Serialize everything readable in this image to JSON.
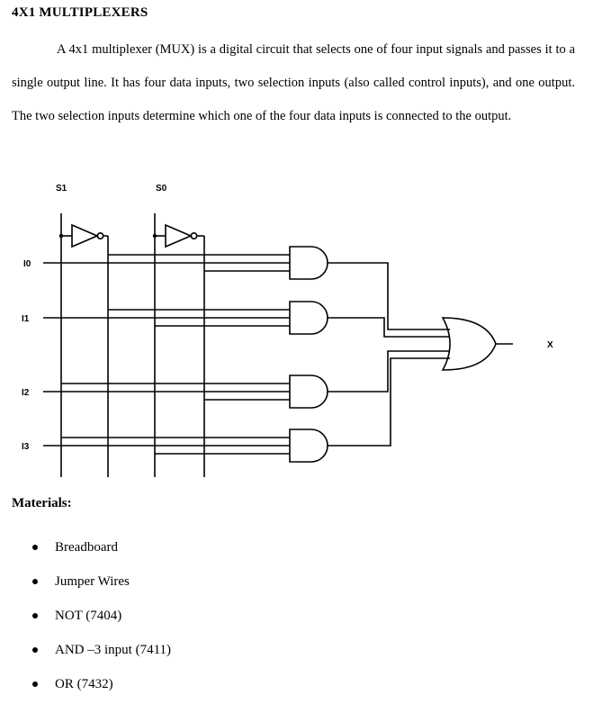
{
  "heading": "4X1 MULTIPLEXERS",
  "intro": "A 4x1 multiplexer (MUX) is a digital circuit that selects one of four input signals and passes it to a single output line. It has four data inputs, two selection inputs (also called control inputs), and one output. The two selection inputs determine which one of the four data inputs is connected to the output.",
  "diagram": {
    "select_labels": {
      "s1": "S1",
      "s0": "S0"
    },
    "input_labels": [
      "I0",
      "I1",
      "I2",
      "I3"
    ],
    "output_label": "X",
    "gates": [
      "NOT",
      "NOT",
      "AND",
      "AND",
      "AND",
      "AND",
      "OR"
    ]
  },
  "materials": {
    "heading": "Materials:",
    "items": [
      "Breadboard",
      "Jumper Wires",
      "NOT (7404)",
      "AND –3 input (7411)",
      "OR (7432)"
    ]
  }
}
